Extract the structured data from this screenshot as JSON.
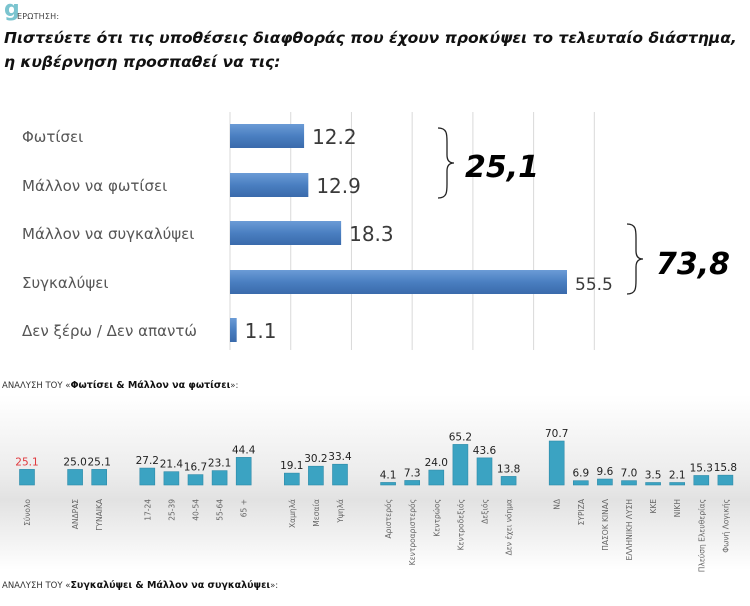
{
  "header": {
    "logo_text": "g",
    "question_label": "ΕΡΩΤΗΣΗ:",
    "question": "Πιστεύετε ότι τις υποθέσεις διαφθοράς που έχουν προκύψει το τελευταίο διάστημα, η κυβέρνηση προσπαθεί να τις:"
  },
  "chart_data": [
    {
      "type": "bar",
      "orientation": "horizontal",
      "categories": [
        "Φωτίσει",
        "Μάλλον να φωτίσει",
        "Μάλλον να συγκαλύψει",
        "Συγκαλύψει",
        "Δεν ξέρω / Δεν απαντώ"
      ],
      "values": [
        12.2,
        12.9,
        18.3,
        55.5,
        1.1
      ],
      "value_labels": [
        "12.2",
        "12.9",
        "18.3",
        "55.5",
        "1.1"
      ],
      "xlim": [
        0,
        60
      ],
      "grid": true,
      "bar_color": "#4a7fc1",
      "annotations": [
        {
          "text": "25,1",
          "groups": [
            "Φωτίσει",
            "Μάλλον να φωτίσει"
          ]
        },
        {
          "text": "73,8",
          "groups": [
            "Μάλλον να συγκαλύψει",
            "Συγκαλύψει"
          ]
        }
      ]
    },
    {
      "type": "bar",
      "title_prefix": "ΑΝΑΛΥΣΗ ΤΟΥ «",
      "title_bold": "Φωτίσει & Μάλλον να φωτίσει",
      "title_suffix": "»:",
      "bar_color": "#3ba3c2",
      "highlight_color": "#e0393e",
      "ylim": [
        0,
        75
      ],
      "groups": [
        {
          "categories": [
            "Σύνολο"
          ],
          "values": [
            25.1
          ],
          "labels": [
            "25.1"
          ],
          "highlight": true
        },
        {
          "categories": [
            "ΑΝΔΡΑΣ",
            "ΓΥΝΑΙΚΑ"
          ],
          "values": [
            25.0,
            25.1
          ],
          "labels": [
            "25.0",
            "25.1"
          ]
        },
        {
          "categories": [
            "17-24",
            "25-39",
            "40-54",
            "55-64",
            "65 +"
          ],
          "values": [
            27.2,
            21.4,
            16.7,
            23.1,
            44.4
          ],
          "labels": [
            "27.2",
            "21.4",
            "16.7",
            "23.1",
            "44.4"
          ]
        },
        {
          "categories": [
            "Χαμηλά",
            "Μεσαία",
            "Υψηλά"
          ],
          "values": [
            19.1,
            30.2,
            33.4
          ],
          "labels": [
            "19.1",
            "30.2",
            "33.4"
          ]
        },
        {
          "categories": [
            "Αριστερός",
            "Κεντροαριστερός",
            "Κεντρώος",
            "Κεντροδεξιός",
            "Δεξιός",
            "Δεν έχει νόημα"
          ],
          "values": [
            4.1,
            7.3,
            24.0,
            65.2,
            43.6,
            13.8
          ],
          "labels": [
            "4.1",
            "7.3",
            "24.0",
            "65.2",
            "43.6",
            "13.8"
          ]
        },
        {
          "categories": [
            "ΝΔ",
            "ΣΥΡΙΖΑ",
            "ΠΑΣΟΚ ΚΙΝΑΛ",
            "ΕΛΛΗΝΙΚΗ ΛΥΣΗ",
            "ΚΚΕ",
            "ΝΙΚΗ",
            "Πλεύση Ελευθερίας",
            "Φωνή Λογικής"
          ],
          "values": [
            70.7,
            6.9,
            9.6,
            7.0,
            3.5,
            2.1,
            15.3,
            15.8
          ],
          "labels": [
            "70.7",
            "6.9",
            "9.6",
            "7.0",
            "3.5",
            "2.1",
            "15.3",
            "15.8"
          ]
        }
      ]
    }
  ],
  "section2": {
    "title_prefix": "ΑΝΑΛΥΣΗ ΤΟΥ «",
    "title_bold": "Συγκαλύψει & Μάλλον να συγκαλύψει",
    "title_suffix": "»:"
  }
}
